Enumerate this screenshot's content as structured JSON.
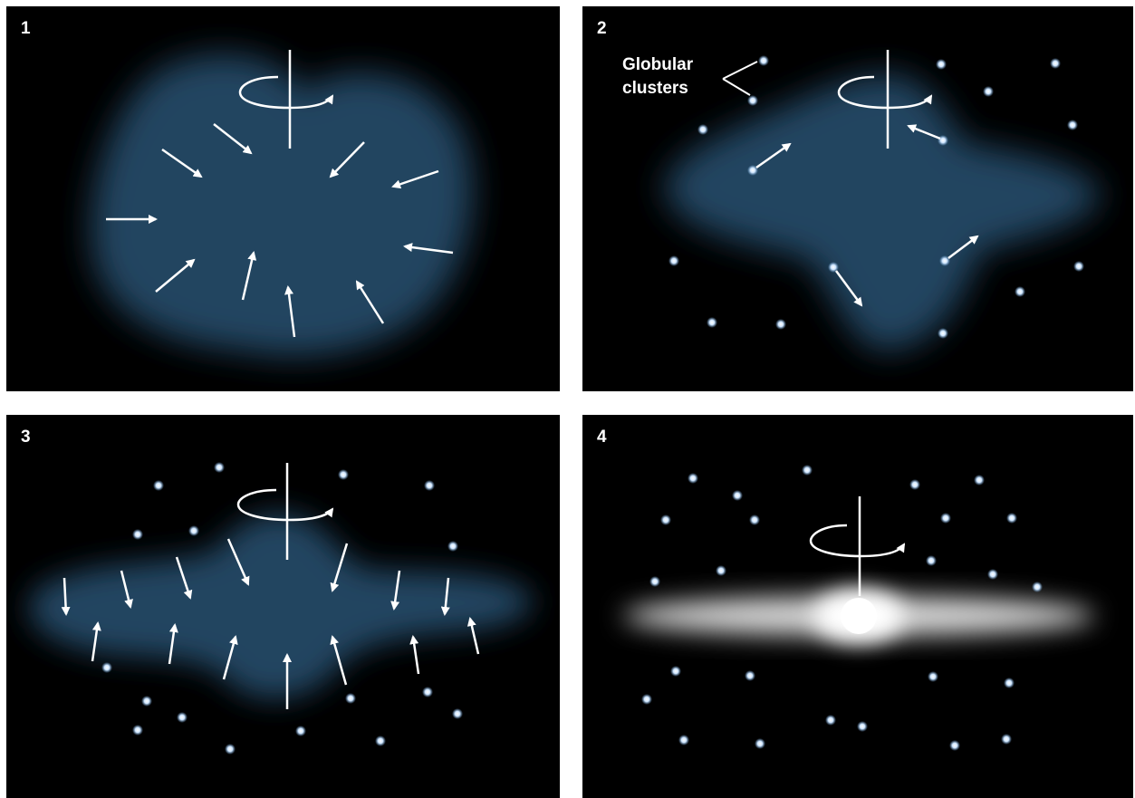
{
  "panels": [
    {
      "number": "1"
    },
    {
      "number": "2",
      "annotation_line1": "Globular",
      "annotation_line2": "clusters"
    },
    {
      "number": "3"
    },
    {
      "number": "4"
    }
  ],
  "colors": {
    "background": "#000000",
    "gas_cloud": "#234460",
    "arrow": "#ffffff",
    "cluster_star": "#cfe6ff",
    "disk_glow": "#ffffff"
  }
}
